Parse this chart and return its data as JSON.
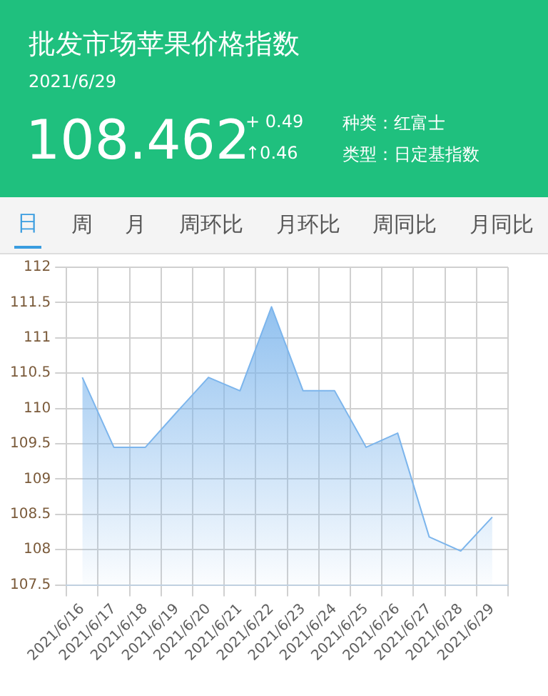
{
  "chart_data": {
    "type": "area",
    "title": "批发市场苹果价格指数",
    "subtitle": "2021/6/29",
    "annotations": [
      "108.462",
      "+ 0.49",
      "↑0.46",
      "种类：红富士",
      "类型：日定基指数",
      "日",
      "周",
      "月",
      "周环比",
      "月环比",
      "周同比",
      "月同比"
    ],
    "categories": [
      "2021/6/16",
      "2021/6/17",
      "2021/6/18",
      "2021/6/19",
      "2021/6/20",
      "2021/6/21",
      "2021/6/22",
      "2021/6/23",
      "2021/6/24",
      "2021/6/25",
      "2021/6/26",
      "2021/6/27",
      "2021/6/28",
      "2021/6/29"
    ],
    "series": [
      {
        "color": "#7cb5ec",
        "values": [
          110.44,
          109.45,
          109.45,
          109.95,
          110.44,
          110.25,
          111.44,
          110.25,
          110.25,
          109.45,
          109.65,
          108.18,
          107.98,
          108.46
        ]
      }
    ],
    "ylim": [
      107.5,
      112
    ],
    "yticks": [
      107.5,
      108,
      108.5,
      109,
      109.5,
      110,
      110.5,
      111,
      111.5,
      112
    ],
    "grid": true,
    "legend": false
  }
}
